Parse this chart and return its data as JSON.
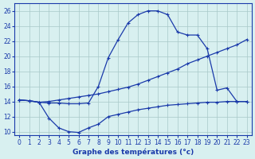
{
  "hours": [
    0,
    1,
    2,
    3,
    4,
    5,
    6,
    7,
    8,
    9,
    10,
    11,
    12,
    13,
    14,
    15,
    16,
    17,
    18,
    19,
    20,
    21,
    22,
    23
  ],
  "line_top": [
    14.2,
    14.1,
    13.9,
    13.8,
    13.8,
    13.7,
    13.7,
    13.8,
    16.0,
    19.8,
    22.2,
    24.4,
    25.5,
    26.0,
    26.0,
    25.5,
    23.2,
    22.8,
    22.8,
    21.0,
    15.5,
    15.8,
    14.0,
    14.0
  ],
  "line_mid": [
    14.2,
    14.1,
    13.9,
    14.0,
    14.2,
    14.4,
    14.6,
    14.8,
    15.0,
    15.3,
    15.6,
    15.9,
    16.3,
    16.8,
    17.3,
    17.8,
    18.3,
    19.0,
    19.5,
    20.0,
    20.5,
    21.0,
    21.5,
    22.2
  ],
  "line_bot": [
    14.2,
    14.1,
    13.9,
    11.8,
    10.5,
    10.0,
    9.9,
    10.5,
    11.0,
    12.0,
    12.3,
    12.6,
    12.9,
    13.1,
    13.3,
    13.5,
    13.6,
    13.7,
    13.8,
    13.9,
    13.9,
    14.0,
    14.0,
    14.0
  ],
  "line_color": "#1a3aaa",
  "bg_color": "#d8f0f0",
  "grid_color": "#a8c8c8",
  "xlabel": "Graphe des températures (°c)",
  "xlim": [
    -0.5,
    23.5
  ],
  "ylim": [
    9.5,
    27
  ],
  "yticks": [
    10,
    12,
    14,
    16,
    18,
    20,
    22,
    24,
    26
  ],
  "xticks": [
    0,
    1,
    2,
    3,
    4,
    5,
    6,
    7,
    8,
    9,
    10,
    11,
    12,
    13,
    14,
    15,
    16,
    17,
    18,
    19,
    20,
    21,
    22,
    23
  ],
  "tick_fontsize": 5.5,
  "xlabel_fontsize": 6.5
}
